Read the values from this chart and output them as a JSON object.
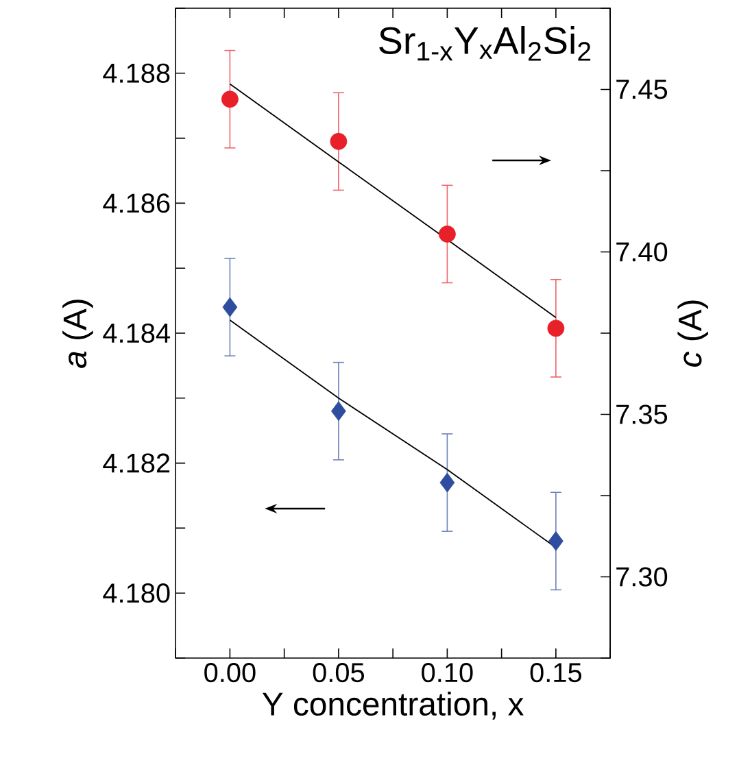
{
  "chart_data": {
    "type": "scatter",
    "title": "Sr$_{1-x}$Y$_{x}$Al$_{2}$Si$_{2}$",
    "xlabel": "Y concentration, x",
    "ylabel": "*a* (A)",
    "y2label": "*c* (A)",
    "xlim": [
      -0.025,
      0.175
    ],
    "xticks": [
      {
        "value": -0.025,
        "label": null
      },
      {
        "value": 0,
        "label": "0.00"
      },
      {
        "value": 0.025,
        "label": null
      },
      {
        "value": 0.05,
        "label": "0.05"
      },
      {
        "value": 0.075,
        "label": null
      },
      {
        "value": 0.1,
        "label": "0.10"
      },
      {
        "value": 0.125,
        "label": null
      },
      {
        "value": 0.15,
        "label": "0.15"
      },
      {
        "value": 0.175,
        "label": null
      }
    ],
    "ylim": [
      4.179,
      4.189
    ],
    "yticks": [
      {
        "value": 4.179,
        "label": null
      },
      {
        "value": 4.18,
        "label": "4.180"
      },
      {
        "value": 4.181,
        "label": null
      },
      {
        "value": 4.182,
        "label": "4.182"
      },
      {
        "value": 4.183,
        "label": null
      },
      {
        "value": 4.184,
        "label": "4.184"
      },
      {
        "value": 4.185,
        "label": null
      },
      {
        "value": 4.186,
        "label": "4.186"
      },
      {
        "value": 4.187,
        "label": null
      },
      {
        "value": 4.188,
        "label": "4.188"
      },
      {
        "value": 4.189,
        "label": null
      }
    ],
    "y2lim": [
      7.275,
      7.475
    ],
    "y2ticks": [
      {
        "value": 7.275,
        "label": null
      },
      {
        "value": 7.3,
        "label": "7.30"
      },
      {
        "value": 7.325,
        "label": null
      },
      {
        "value": 7.35,
        "label": "7.35"
      },
      {
        "value": 7.375,
        "label": null
      },
      {
        "value": 7.4,
        "label": "7.40"
      },
      {
        "value": 7.425,
        "label": null
      },
      {
        "value": 7.45,
        "label": "7.45"
      },
      {
        "value": 7.475,
        "label": null
      }
    ],
    "x": [
      0,
      0.05,
      0.1,
      0.15
    ],
    "series": [
      {
        "color": "#e8202a",
        "axis": "y2",
        "marker": "circle",
        "values": [
          7.447,
          7.434,
          7.4055,
          7.3765
        ],
        "errors": [
          0.015,
          0.015,
          0.015,
          0.015
        ]
      },
      {
        "type": "line",
        "color": "#000000",
        "axis": "y2",
        "marker": "none",
        "values": [
          7.4517,
          7.4277,
          7.4038,
          7.3798
        ]
      },
      {
        "color": "#2e4d9e",
        "marker": "diamond",
        "values": [
          4.1844,
          4.1828,
          4.1817,
          4.1808
        ],
        "errors": [
          0.00075,
          0.00075,
          0.00075,
          0.00075
        ]
      },
      {
        "type": "line",
        "color": "#000000",
        "marker": "none",
        "values": [
          4.1842,
          4.183,
          4.1819,
          4.1807
        ]
      }
    ]
  }
}
